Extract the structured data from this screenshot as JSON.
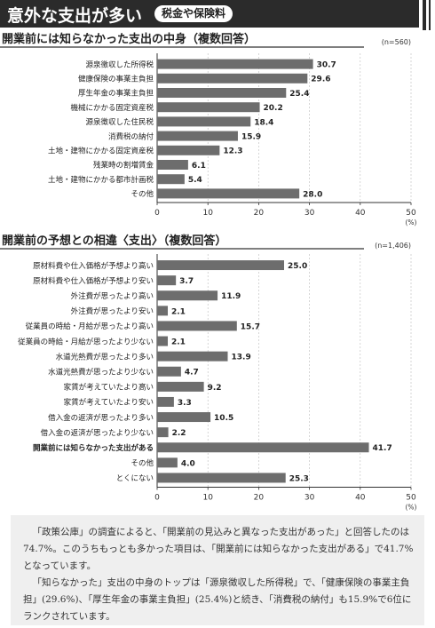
{
  "header": {
    "title": "意外な支出が多い",
    "tag": "税金や保険料"
  },
  "colors": {
    "bar": "#6d6d6d",
    "header_bg": "#2b2b2b",
    "note_bg": "#efefef"
  },
  "chart_data": [
    {
      "type": "bar",
      "orientation": "horizontal",
      "title": "開業前には知らなかった支出の中身（複数回答）",
      "n_label": "(n=560)",
      "unit": "(%)",
      "xlim": [
        0,
        50
      ],
      "xticks": [
        "0",
        "10",
        "20",
        "30",
        "40",
        "50"
      ],
      "categories": [
        "源泉徴収した所得税",
        "健康保険の事業主負担",
        "厚生年金の事業主負担",
        "機械にかかる固定資産税",
        "源泉徴収した住民税",
        "消費税の納付",
        "土地・建物にかかる固定資産税",
        "残業時の割増賃金",
        "土地・建物にかかる都市計画税",
        "その他"
      ],
      "values": [
        30.7,
        29.6,
        25.4,
        20.2,
        18.4,
        15.9,
        12.3,
        6.1,
        5.4,
        28.0
      ],
      "value_labels": [
        "30.7",
        "29.6",
        "25.4",
        "20.2",
        "18.4",
        "15.9",
        "12.3",
        "6.1",
        "5.4",
        "28.0"
      ],
      "emphasized_category": null
    },
    {
      "type": "bar",
      "orientation": "horizontal",
      "title": "開業前の予想との相違〈支出〉（複数回答）",
      "n_label": "(n=1,406)",
      "unit": "(%)",
      "xlim": [
        0,
        50
      ],
      "xticks": [
        "0",
        "10",
        "20",
        "30",
        "40",
        "50"
      ],
      "categories": [
        "原材料費や仕入価格が予想より高い",
        "原材料費や仕入価格が予想より安い",
        "外注費が思ったより高い",
        "外注費が思ったより安い",
        "従業員の時給・月給が思ったより高い",
        "従業員の時給・月給が思ったより少ない",
        "水道光熱費が思ったより多い",
        "水道光熱費が思ったより少ない",
        "家賃が考えていたより高い",
        "家賃が考えていたより安い",
        "借入金の返済が思ったより多い",
        "借入金の返済が思ったより少ない",
        "開業前には知らなかった支出がある",
        "その他",
        "とくにない"
      ],
      "values": [
        25.0,
        3.7,
        11.9,
        2.1,
        15.7,
        2.1,
        13.9,
        4.7,
        9.2,
        3.3,
        10.5,
        2.2,
        41.7,
        4.0,
        25.3
      ],
      "value_labels": [
        "25.0",
        "3.7",
        "11.9",
        "2.1",
        "15.7",
        "2.1",
        "13.9",
        "4.7",
        "9.2",
        "3.3",
        "10.5",
        "2.2",
        "41.7",
        "4.0",
        "25.3"
      ],
      "emphasized_category": "開業前には知らなかった支出がある"
    }
  ],
  "note": {
    "paragraphs": [
      "「政策公庫」の調査によると、「開業前の見込みと異なった支出があった」と回答したのは74.7%。このうちもっとも多かった項目は、「開業前には知らなかった支出がある」で41.7%となっています。",
      "「知らなかった」支出の中身のトップは「源泉徴収した所得税」で、「健康保険の事業主負担」(29.6%)、「厚生年金の事業主負担」(25.4%)と続き、「消費税の納付」も15.9%で6位にランクされています。"
    ]
  }
}
